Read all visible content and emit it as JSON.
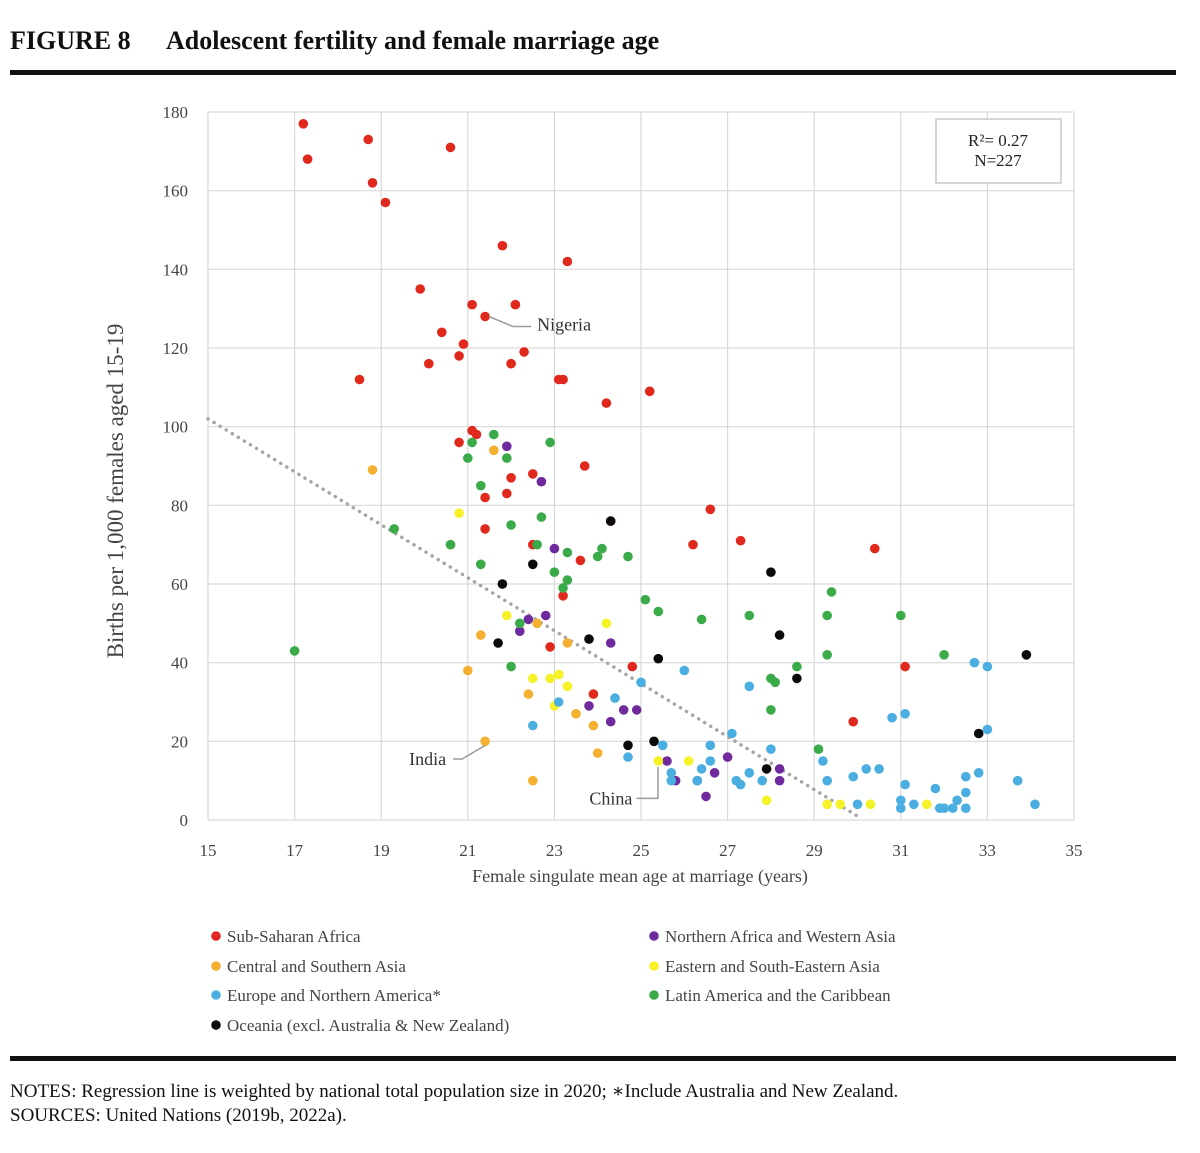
{
  "figure": {
    "label": "FIGURE 8",
    "title": "Adolescent fertility and female marriage age"
  },
  "notes": "NOTES: Regression line is weighted by national total population size in 2020; ∗Include Australia and New Zealand.",
  "sources": "SOURCES: United Nations (2019b, 2022a).",
  "chart_data": {
    "type": "scatter",
    "title": "Adolescent fertility and female marriage age",
    "xlabel": "Female singulate mean age at marriage (years)",
    "ylabel": "Births per 1,000 females aged 15-19",
    "xlim": [
      15,
      35
    ],
    "ylim": [
      0,
      180
    ],
    "xticks": [
      15,
      17,
      19,
      21,
      23,
      25,
      27,
      29,
      31,
      33,
      35
    ],
    "yticks": [
      0,
      20,
      40,
      60,
      80,
      100,
      120,
      140,
      160,
      180
    ],
    "grid": true,
    "legend_position": "bottom",
    "stats_box": {
      "r2": "R²= 0.27",
      "n": "N=227"
    },
    "regression_line": {
      "style": "dotted",
      "color": "#a6a6a6",
      "x": [
        15,
        30
      ],
      "y": [
        102,
        1
      ]
    },
    "annotations": [
      {
        "label": "Nigeria",
        "point": [
          21.4,
          128
        ],
        "text_at": [
          22.6,
          126
        ]
      },
      {
        "label": "India",
        "point": [
          21.4,
          20
        ],
        "text_at": [
          20.5,
          15.5
        ]
      },
      {
        "label": "China",
        "point": [
          25.3,
          15
        ],
        "text_at": [
          24.8,
          6
        ]
      }
    ],
    "series": [
      {
        "name": "Sub-Saharan Africa",
        "color": "#e0291c",
        "points": [
          [
            17.2,
            177
          ],
          [
            17.3,
            168
          ],
          [
            18.7,
            173
          ],
          [
            18.8,
            162
          ],
          [
            19.1,
            157
          ],
          [
            20.6,
            171
          ],
          [
            21.8,
            146
          ],
          [
            23.3,
            142
          ],
          [
            19.9,
            135
          ],
          [
            21.1,
            131
          ],
          [
            22.1,
            131
          ],
          [
            21.4,
            128
          ],
          [
            20.4,
            124
          ],
          [
            20.9,
            121
          ],
          [
            20.8,
            118
          ],
          [
            22.3,
            119
          ],
          [
            20.1,
            116
          ],
          [
            22,
            116
          ],
          [
            18.5,
            112
          ],
          [
            23.1,
            112
          ],
          [
            23.2,
            112
          ],
          [
            25.2,
            109
          ],
          [
            24.2,
            106
          ],
          [
            21.1,
            99
          ],
          [
            21.2,
            98
          ],
          [
            20.8,
            96
          ],
          [
            23.7,
            90
          ],
          [
            22,
            87
          ],
          [
            22.5,
            88
          ],
          [
            21.9,
            83
          ],
          [
            21.4,
            82
          ],
          [
            21.4,
            74
          ],
          [
            24.3,
            76
          ],
          [
            26.6,
            79
          ],
          [
            27.3,
            71
          ],
          [
            30.4,
            69
          ],
          [
            26.2,
            70
          ],
          [
            22.5,
            70
          ],
          [
            23.6,
            66
          ],
          [
            23.2,
            57
          ],
          [
            22.9,
            44
          ],
          [
            24.8,
            39
          ],
          [
            23.9,
            32
          ],
          [
            31.1,
            39
          ],
          [
            29.9,
            25
          ]
        ]
      },
      {
        "name": "Northern Africa and Western Asia",
        "color": "#6f2a9e",
        "points": [
          [
            21.9,
            95
          ],
          [
            22.7,
            86
          ],
          [
            23,
            69
          ],
          [
            22.8,
            52
          ],
          [
            22.4,
            51
          ],
          [
            22.2,
            48
          ],
          [
            24.3,
            45
          ],
          [
            23.8,
            29
          ],
          [
            24.6,
            28
          ],
          [
            24.9,
            28
          ],
          [
            24.3,
            25
          ],
          [
            25.6,
            15
          ],
          [
            25.8,
            10
          ],
          [
            26.3,
            10
          ],
          [
            26.7,
            12
          ],
          [
            27,
            16
          ],
          [
            28.2,
            13
          ],
          [
            28.2,
            10
          ],
          [
            26.5,
            6
          ]
        ]
      },
      {
        "name": "Central and Southern Asia",
        "color": "#f5b031",
        "points": [
          [
            18.8,
            89
          ],
          [
            21.6,
            94
          ],
          [
            20.6,
            70
          ],
          [
            21.3,
            47
          ],
          [
            21,
            38
          ],
          [
            22.6,
            50
          ],
          [
            23.3,
            45
          ],
          [
            23.1,
            37
          ],
          [
            22.4,
            32
          ],
          [
            23.5,
            27
          ],
          [
            23.9,
            24
          ],
          [
            24,
            17
          ],
          [
            22.5,
            10
          ],
          [
            21.4,
            20
          ]
        ]
      },
      {
        "name": "Eastern and South-Eastern Asia",
        "color": "#f5f227",
        "points": [
          [
            20.8,
            78
          ],
          [
            21.9,
            52
          ],
          [
            24.2,
            50
          ],
          [
            22.5,
            36
          ],
          [
            22.9,
            36
          ],
          [
            23.1,
            37
          ],
          [
            23,
            29
          ],
          [
            23.3,
            34
          ],
          [
            25.4,
            15
          ],
          [
            26.1,
            15
          ],
          [
            27.9,
            5
          ],
          [
            29.3,
            4
          ],
          [
            29.6,
            4
          ],
          [
            30.3,
            4
          ],
          [
            31.6,
            4
          ]
        ]
      },
      {
        "name": "Europe and Northern America*",
        "color": "#4baee0",
        "points": [
          [
            26,
            38
          ],
          [
            25,
            35
          ],
          [
            24.4,
            31
          ],
          [
            23.1,
            30
          ],
          [
            22.5,
            24
          ],
          [
            24.7,
            16
          ],
          [
            25.5,
            19
          ],
          [
            25.7,
            12
          ],
          [
            25.7,
            10
          ],
          [
            26.3,
            10
          ],
          [
            26.4,
            13
          ],
          [
            26.6,
            15
          ],
          [
            26.6,
            19
          ],
          [
            27.1,
            22
          ],
          [
            27.2,
            10
          ],
          [
            27.3,
            9
          ],
          [
            27.5,
            12
          ],
          [
            27.5,
            34
          ],
          [
            27.8,
            10
          ],
          [
            28,
            18
          ],
          [
            29.2,
            15
          ],
          [
            29.3,
            10
          ],
          [
            29.9,
            11
          ],
          [
            30.2,
            13
          ],
          [
            30.5,
            13
          ],
          [
            30.8,
            26
          ],
          [
            31.1,
            27
          ],
          [
            31,
            5
          ],
          [
            31.1,
            9
          ],
          [
            31,
            3
          ],
          [
            31.3,
            4
          ],
          [
            31.8,
            8
          ],
          [
            31.9,
            3
          ],
          [
            32,
            3
          ],
          [
            32.2,
            3
          ],
          [
            32.3,
            5
          ],
          [
            32.5,
            3
          ],
          [
            32.5,
            7
          ],
          [
            32.5,
            11
          ],
          [
            32.8,
            12
          ],
          [
            32.7,
            40
          ],
          [
            33,
            39
          ],
          [
            33,
            23
          ],
          [
            33.7,
            10
          ],
          [
            34.1,
            4
          ],
          [
            30,
            4
          ]
        ]
      },
      {
        "name": "Latin America and the Caribbean",
        "color": "#3bab4a",
        "points": [
          [
            17,
            43
          ],
          [
            19.3,
            74
          ],
          [
            20.6,
            70
          ],
          [
            21,
            92
          ],
          [
            21.1,
            96
          ],
          [
            21.6,
            98
          ],
          [
            21.9,
            92
          ],
          [
            22.9,
            96
          ],
          [
            21.3,
            85
          ],
          [
            22.7,
            77
          ],
          [
            22,
            75
          ],
          [
            22.6,
            70
          ],
          [
            23.3,
            68
          ],
          [
            24.1,
            69
          ],
          [
            24,
            67
          ],
          [
            24.7,
            67
          ],
          [
            23,
            63
          ],
          [
            23.3,
            61
          ],
          [
            23.2,
            59
          ],
          [
            21.3,
            65
          ],
          [
            22.2,
            50
          ],
          [
            22,
            39
          ],
          [
            25.1,
            56
          ],
          [
            25.4,
            53
          ],
          [
            26.4,
            51
          ],
          [
            27.5,
            52
          ],
          [
            28,
            36
          ],
          [
            28.1,
            35
          ],
          [
            28,
            28
          ],
          [
            28.6,
            39
          ],
          [
            29.1,
            18
          ],
          [
            29.3,
            52
          ],
          [
            29.3,
            42
          ],
          [
            29.4,
            58
          ],
          [
            31,
            52
          ],
          [
            32,
            42
          ]
        ]
      },
      {
        "name": "Oceania (excl. Australia & New Zealand)",
        "color": "#0a0a0a",
        "points": [
          [
            24.3,
            76
          ],
          [
            22.5,
            65
          ],
          [
            21.8,
            60
          ],
          [
            21.7,
            45
          ],
          [
            23.8,
            46
          ],
          [
            25.4,
            41
          ],
          [
            28,
            63
          ],
          [
            28.2,
            47
          ],
          [
            28.6,
            36
          ],
          [
            24.7,
            19
          ],
          [
            25.3,
            20
          ],
          [
            27.9,
            13
          ],
          [
            32.8,
            22
          ],
          [
            33.9,
            42
          ]
        ]
      }
    ]
  }
}
